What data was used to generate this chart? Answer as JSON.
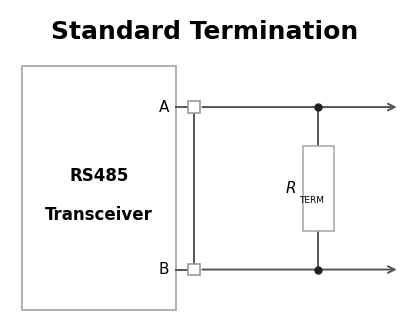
{
  "title": "Standard Termination",
  "title_fontsize": 18,
  "title_fontweight": "bold",
  "bg_color": "#ffffff",
  "line_color": "#555555",
  "line_width": 1.4,
  "box_color": "#ffffff",
  "transceiver_label_line1": "RS485",
  "transceiver_label_line2": "Transceiver",
  "label_A": "A",
  "label_B": "B",
  "label_R": "R",
  "label_TERM": "TERM",
  "figsize": [
    4.09,
    3.36
  ],
  "dpi": 100
}
